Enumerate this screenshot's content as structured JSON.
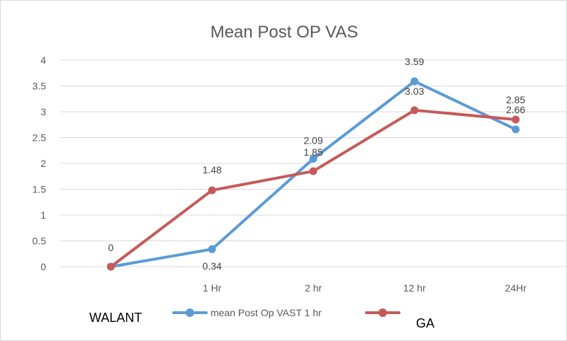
{
  "chart_data": {
    "type": "line",
    "title": "Mean Post OP VAS",
    "categories": [
      "",
      "1 Hr",
      "2 hr",
      "12 hr",
      "24Hr"
    ],
    "ylim": [
      0,
      4
    ],
    "yticks": [
      "0",
      "0.5",
      "1",
      "1.5",
      "2",
      "2.5",
      "3",
      "3.5",
      "4"
    ],
    "grid": true,
    "series": [
      {
        "name": "mean Post Op VAST 1 hr",
        "color": "#5B9BD5",
        "values": [
          0,
          0.34,
          2.09,
          3.59,
          2.66
        ],
        "labels": [
          "",
          "0.34",
          "2.09",
          "3.59",
          "2.66"
        ]
      },
      {
        "name": "GA",
        "color": "#C55A5A",
        "values": [
          0,
          1.48,
          1.85,
          3.03,
          2.85
        ],
        "labels": [
          "0",
          "1.48",
          "1.85",
          "3.03",
          "2.85"
        ]
      }
    ],
    "extra_labels": {
      "walant": "WALANT"
    },
    "legend": "bottom"
  }
}
